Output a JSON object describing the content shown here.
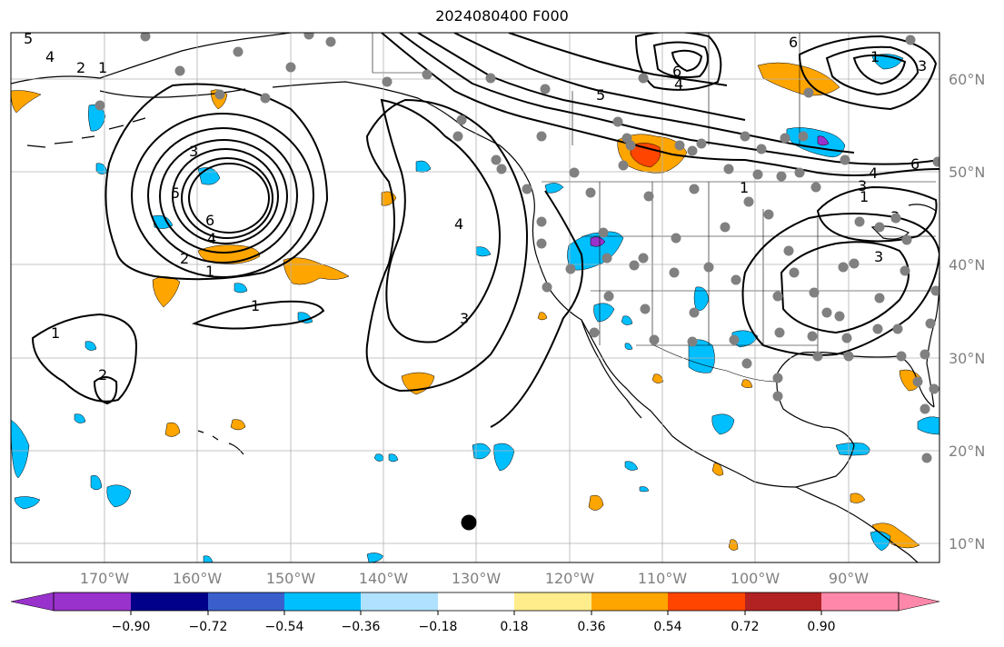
{
  "title": "2024080400 F000",
  "lat_labels": [
    "60°N",
    "50°N",
    "40°N",
    "30°N",
    "20°N",
    "10°N"
  ],
  "lon_labels": [
    "170°W",
    "160°W",
    "150°W",
    "140°W",
    "130°W",
    "120°W",
    "110°W",
    "100°W",
    "90°W"
  ],
  "colorbar": {
    "ticks": [
      "−0.90",
      "−0.72",
      "−0.54",
      "−0.36",
      "−0.18",
      "0.18",
      "0.36",
      "0.54",
      "0.72",
      "0.90"
    ],
    "colors": [
      "#9932cc",
      "#00008b",
      "#3a5fcd",
      "#00bfff",
      "#b0e2ff",
      "#ffffff",
      "#ffec8b",
      "#ffa500",
      "#ff4500",
      "#b22222",
      "#ff88aa"
    ]
  },
  "contour_labels": [
    "5",
    "4",
    "2",
    "1",
    "3",
    "5",
    "6",
    "4",
    "2",
    "1",
    "1",
    "2",
    "4",
    "3",
    "5",
    "6",
    "4",
    "6",
    "1",
    "6",
    "1",
    "3",
    "4",
    "3",
    "1",
    "3",
    "1",
    "3"
  ]
}
